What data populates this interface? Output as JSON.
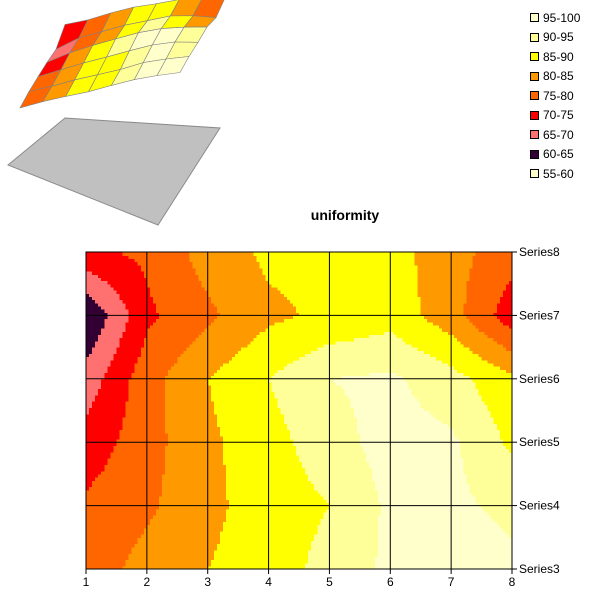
{
  "chart_data": {
    "type": "heatmap",
    "subtype": "contour",
    "title": "uniformity",
    "x": [
      1,
      2,
      3,
      4,
      5,
      6,
      7,
      8
    ],
    "series": [
      {
        "name": "Series3",
        "values": [
          77,
          82,
          85,
          87,
          92,
          96,
          97,
          96
        ]
      },
      {
        "name": "Series4",
        "values": [
          76,
          79,
          84,
          87,
          90,
          96,
          96,
          94
        ]
      },
      {
        "name": "Series5",
        "values": [
          72,
          78,
          84,
          88,
          93,
          97,
          96,
          89
        ]
      },
      {
        "name": "Series6",
        "values": [
          67,
          78,
          85,
          90,
          95,
          96,
          92,
          86
        ]
      },
      {
        "name": "Series7",
        "values": [
          60,
          74,
          79,
          84,
          86,
          88,
          82,
          72
        ]
      },
      {
        "name": "Series8",
        "values": [
          74,
          76,
          82,
          86,
          86,
          87,
          82,
          77
        ]
      }
    ],
    "legend": [
      {
        "label": "95-100",
        "color": "#ffffcc"
      },
      {
        "label": "90-95",
        "color": "#ffff99"
      },
      {
        "label": "85-90",
        "color": "#ffff00"
      },
      {
        "label": "80-85",
        "color": "#ff9900"
      },
      {
        "label": "75-80",
        "color": "#ff6600"
      },
      {
        "label": "70-75",
        "color": "#ff0000"
      },
      {
        "label": "65-70",
        "color": "#ff7070"
      },
      {
        "label": "60-65",
        "color": "#330033"
      },
      {
        "label": "55-60",
        "color": "#ffffcc"
      }
    ],
    "legend_position": "top-right",
    "grid": true
  }
}
